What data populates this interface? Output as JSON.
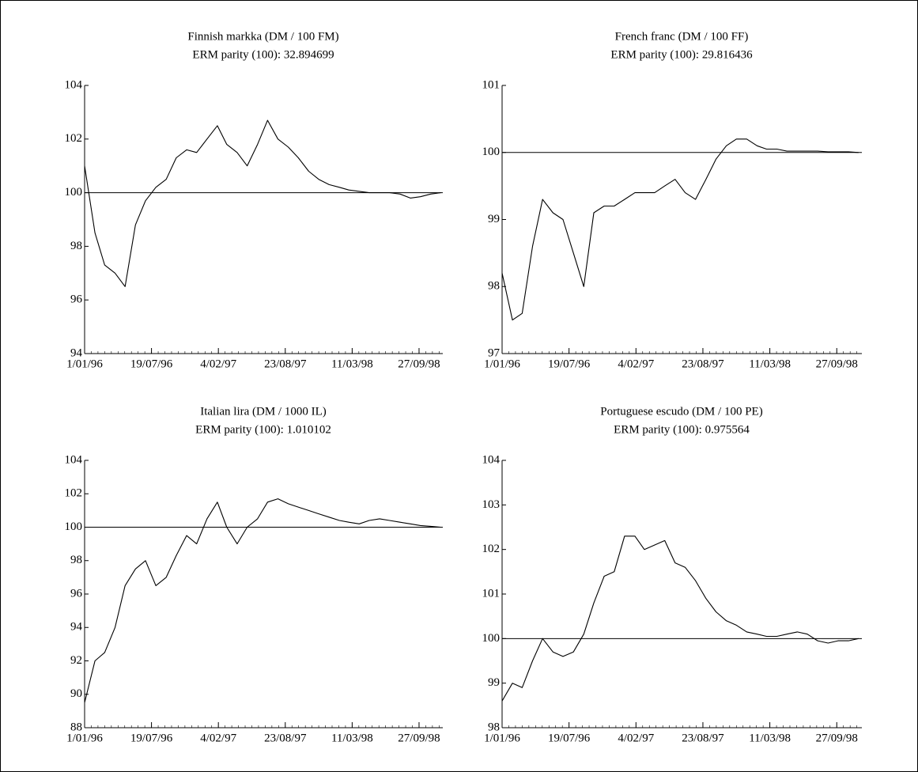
{
  "chart_data": [
    {
      "type": "line",
      "title": "Finnish markka (DM / 100 FM)",
      "subtitle": "ERM parity (100): 32.894699",
      "x": [
        "1/01/96",
        "1/02/96",
        "1/03/96",
        "1/04/96",
        "1/05/96",
        "1/06/96",
        "1/07/96",
        "1/08/96",
        "1/09/96",
        "1/10/96",
        "1/11/96",
        "1/12/96",
        "1/01/97",
        "1/02/97",
        "1/03/97",
        "1/04/97",
        "1/05/97",
        "1/06/97",
        "1/07/97",
        "1/08/97",
        "1/09/97",
        "1/10/97",
        "1/11/97",
        "1/12/97",
        "1/01/98",
        "1/02/98",
        "1/03/98",
        "1/04/98",
        "1/05/98",
        "1/06/98",
        "1/07/98",
        "1/08/98",
        "1/09/98",
        "1/10/98",
        "1/11/98",
        "1/12/98"
      ],
      "values": [
        101,
        98.5,
        97.3,
        97,
        96.5,
        98.8,
        99.7,
        100.2,
        100.5,
        101.3,
        101.6,
        101.5,
        102,
        102.5,
        101.8,
        101.5,
        101,
        101.8,
        102.7,
        102,
        101.7,
        101.3,
        100.8,
        100.5,
        100.3,
        100.2,
        100.1,
        100.05,
        100,
        100,
        100,
        99.95,
        99.8,
        99.85,
        99.95,
        100
      ],
      "color": "#000000",
      "hline": 100,
      "xlim": [
        "1/01/96",
        "7/12/98"
      ],
      "xticks": [
        "1/01/96",
        "19/07/96",
        "4/02/97",
        "23/08/97",
        "11/03/98",
        "27/09/98"
      ],
      "ylim": [
        94,
        104
      ],
      "yticks": [
        94,
        96,
        98,
        100,
        102,
        104
      ]
    },
    {
      "type": "line",
      "title": "French franc (DM / 100 FF)",
      "subtitle": "ERM parity (100): 29.816436",
      "x": [
        "1/01/96",
        "1/02/96",
        "1/03/96",
        "1/04/96",
        "1/05/96",
        "1/06/96",
        "1/07/96",
        "1/08/96",
        "1/09/96",
        "1/10/96",
        "1/11/96",
        "1/12/96",
        "1/01/97",
        "1/02/97",
        "1/03/97",
        "1/04/97",
        "1/05/97",
        "1/06/97",
        "1/07/97",
        "1/08/97",
        "1/09/97",
        "1/10/97",
        "1/11/97",
        "1/12/97",
        "1/01/98",
        "1/02/98",
        "1/03/98",
        "1/04/98",
        "1/05/98",
        "1/06/98",
        "1/07/98",
        "1/08/98",
        "1/09/98",
        "1/10/98",
        "1/11/98",
        "1/12/98"
      ],
      "values": [
        98.2,
        97.5,
        97.6,
        98.6,
        99.3,
        99.1,
        99,
        98.5,
        98,
        99.1,
        99.2,
        99.2,
        99.3,
        99.4,
        99.4,
        99.4,
        99.5,
        99.6,
        99.4,
        99.3,
        99.6,
        99.9,
        100.1,
        100.2,
        100.2,
        100.1,
        100.05,
        100.05,
        100.02,
        100.02,
        100.02,
        100.02,
        100.01,
        100.01,
        100.01,
        100
      ],
      "color": "#000000",
      "hline": 100,
      "xlim": [
        "1/01/96",
        "11/12/98"
      ],
      "xticks": [
        "1/01/96",
        "19/07/96",
        "4/02/97",
        "23/08/97",
        "11/03/98",
        "27/09/98"
      ],
      "ylim": [
        97,
        101
      ],
      "yticks": [
        97,
        98,
        99,
        100,
        101
      ]
    },
    {
      "type": "line",
      "title": "Italian lira (DM / 1000 IL)",
      "subtitle": "ERM parity (100): 1.010102",
      "x": [
        "1/01/96",
        "1/02/96",
        "1/03/96",
        "1/04/96",
        "1/05/96",
        "1/06/96",
        "1/07/96",
        "1/08/96",
        "1/09/96",
        "1/10/96",
        "1/11/96",
        "1/12/96",
        "1/01/97",
        "1/02/97",
        "1/03/97",
        "1/04/97",
        "1/05/97",
        "1/06/97",
        "1/07/97",
        "1/08/97",
        "1/09/97",
        "1/10/97",
        "1/11/97",
        "1/12/97",
        "1/01/98",
        "1/02/98",
        "1/03/98",
        "1/04/98",
        "1/05/98",
        "1/06/98",
        "1/07/98",
        "1/08/98",
        "1/09/98",
        "1/10/98",
        "1/11/98",
        "1/12/98"
      ],
      "values": [
        89.5,
        92,
        92.5,
        94,
        96.5,
        97.5,
        98,
        96.5,
        97,
        98.3,
        99.5,
        99,
        100.5,
        101.5,
        100,
        99,
        100,
        100.5,
        101.5,
        101.7,
        101.4,
        101.2,
        101,
        100.8,
        100.6,
        100.4,
        100.3,
        100.2,
        100.4,
        100.5,
        100.4,
        100.3,
        100.2,
        100.1,
        100.05,
        100
      ],
      "color": "#000000",
      "hline": 100,
      "xlim": [
        "1/01/96",
        "7/12/98"
      ],
      "xticks": [
        "1/01/96",
        "19/07/96",
        "4/02/97",
        "23/08/97",
        "11/03/98",
        "27/09/98"
      ],
      "ylim": [
        88,
        104
      ],
      "yticks": [
        88,
        90,
        92,
        94,
        96,
        98,
        100,
        102,
        104
      ]
    },
    {
      "type": "line",
      "title": "Portuguese escudo (DM / 100 PE)",
      "subtitle": "ERM parity (100): 0.975564",
      "x": [
        "1/01/96",
        "1/02/96",
        "1/03/96",
        "1/04/96",
        "1/05/96",
        "1/06/96",
        "1/07/96",
        "1/08/96",
        "1/09/96",
        "1/10/96",
        "1/11/96",
        "1/12/96",
        "1/01/97",
        "1/02/97",
        "1/03/97",
        "1/04/97",
        "1/05/97",
        "1/06/97",
        "1/07/97",
        "1/08/97",
        "1/09/97",
        "1/10/97",
        "1/11/97",
        "1/12/97",
        "1/01/98",
        "1/02/98",
        "1/03/98",
        "1/04/98",
        "1/05/98",
        "1/06/98",
        "1/07/98",
        "1/08/98",
        "1/09/98",
        "1/10/98",
        "1/11/98",
        "1/12/98"
      ],
      "values": [
        98.6,
        99,
        98.9,
        99.5,
        100,
        99.7,
        99.6,
        99.7,
        100.1,
        100.8,
        101.4,
        101.5,
        102.3,
        102.3,
        102,
        102.1,
        102.2,
        101.7,
        101.6,
        101.3,
        100.9,
        100.6,
        100.4,
        100.3,
        100.15,
        100.1,
        100.05,
        100.05,
        100.1,
        100.15,
        100.1,
        99.95,
        99.9,
        99.95,
        99.95,
        100
      ],
      "color": "#000000",
      "hline": 100,
      "xlim": [
        "1/01/96",
        "11/12/98"
      ],
      "xticks": [
        "1/01/96",
        "19/07/96",
        "4/02/97",
        "23/08/97",
        "11/03/98",
        "27/09/98"
      ],
      "ylim": [
        98,
        104
      ],
      "yticks": [
        98,
        99,
        100,
        101,
        102,
        103,
        104
      ]
    }
  ]
}
